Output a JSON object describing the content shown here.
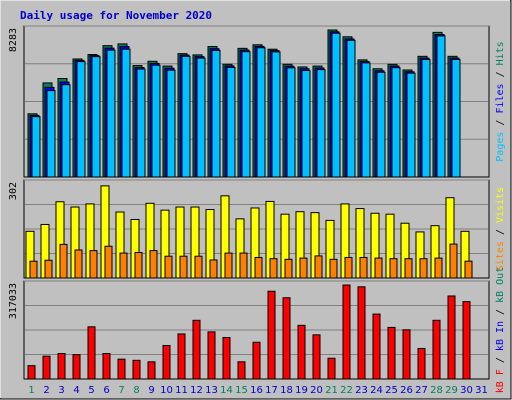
{
  "colors": {
    "background": "#ffffff",
    "frame": "#c0c0c0",
    "plot": "#c0c0c0",
    "grid": "#808080",
    "title": "#0000cc",
    "hits": "#00805c",
    "files": "#0000ff",
    "pages": "#00c0ff",
    "visits": "#ffff00",
    "sites": "#ff8000",
    "kbf": "#ff0000",
    "kbin": "#0000ff",
    "kbout": "#00805c",
    "weekend": "#00805c",
    "weekday": "#0000cc"
  },
  "chart_data": {
    "type": "bar",
    "title": "Daily usage for November 2020",
    "categories": [
      "1",
      "2",
      "3",
      "4",
      "5",
      "6",
      "7",
      "8",
      "9",
      "10",
      "11",
      "12",
      "13",
      "14",
      "15",
      "16",
      "17",
      "18",
      "19",
      "20",
      "21",
      "22",
      "23",
      "24",
      "25",
      "26",
      "27",
      "28",
      "29",
      "30",
      "31"
    ],
    "weekend_days": [
      1,
      7,
      8,
      14,
      15,
      21,
      22,
      28,
      29
    ],
    "panels": [
      {
        "name": "hits-files-pages",
        "max_label": "8283",
        "ymax": 8283,
        "series_labels": {
          "pages": "Pages",
          "files": "Files",
          "hits": "Hits"
        },
        "separator": " / ",
        "series": [
          {
            "name": "Hits",
            "values": [
              3560,
              5300,
              5550,
              6650,
              6900,
              7400,
              7500,
              6280,
              6520,
              6250,
              6950,
              6880,
              7350,
              6350,
              7250,
              7450,
              7200,
              6350,
              6200,
              6250,
              8283,
              7900,
              6600,
              6100,
              6350,
              6030,
              6800,
              8150,
              6800,
              0,
              0
            ]
          },
          {
            "name": "Files",
            "values": [
              3470,
              5050,
              5350,
              6570,
              6840,
              7260,
              7350,
              6170,
              6400,
              6130,
              6870,
              6780,
              7230,
              6260,
              7150,
              7360,
              7120,
              6240,
              6100,
              6140,
              8180,
              7780,
              6510,
              5990,
              6250,
              5930,
              6700,
              8030,
              6700,
              0,
              0
            ]
          },
          {
            "name": "Pages",
            "values": [
              3400,
              4870,
              5200,
              6500,
              6780,
              7150,
              7200,
              6080,
              6300,
              6020,
              6800,
              6700,
              7130,
              6170,
              7060,
              7280,
              7050,
              6150,
              6000,
              6050,
              8100,
              7700,
              6430,
              5900,
              6160,
              5850,
              6620,
              7950,
              6620,
              0,
              0
            ]
          }
        ]
      },
      {
        "name": "visits-sites",
        "max_label": "302",
        "ymax": 302,
        "series_labels": {
          "sites": "Sites",
          "visits": "Visits"
        },
        "separator": " / ",
        "series": [
          {
            "name": "Visits",
            "values": [
              150,
              172,
              245,
              228,
              238,
              296,
              212,
              188,
              240,
              218,
              228,
              228,
              220,
              264,
              190,
              225,
              246,
              205,
              213,
              210,
              185,
              238,
              223,
              208,
              205,
              176,
              148,
              168,
              258,
              150,
              0
            ]
          },
          {
            "name": "Sites",
            "values": [
              54,
              57,
              108,
              90,
              88,
              102,
              80,
              82,
              88,
              70,
              70,
              70,
              58,
              80,
              80,
              66,
              62,
              60,
              64,
              71,
              60,
              66,
              66,
              64,
              62,
              62,
              62,
              64,
              109,
              54,
              0
            ]
          }
        ]
      },
      {
        "name": "kbytes",
        "max_label": "317033",
        "ymax": 317033,
        "series_labels": {
          "kbf": "kB F",
          "kbin": "kB In",
          "kbout": "kB Out"
        },
        "separator": " / ",
        "series": [
          {
            "name": "kB F",
            "values": [
              45000,
              77000,
              86000,
              82000,
              176000,
              86000,
              67000,
              63000,
              58000,
              113000,
              152000,
              198000,
              159000,
              140000,
              58000,
              124000,
              296000,
              274000,
              181000,
              149000,
              70000,
              317033,
              311000,
              219000,
              174000,
              166000,
              103000,
              198000,
              280000,
              261000,
              0
            ]
          }
        ]
      }
    ]
  }
}
